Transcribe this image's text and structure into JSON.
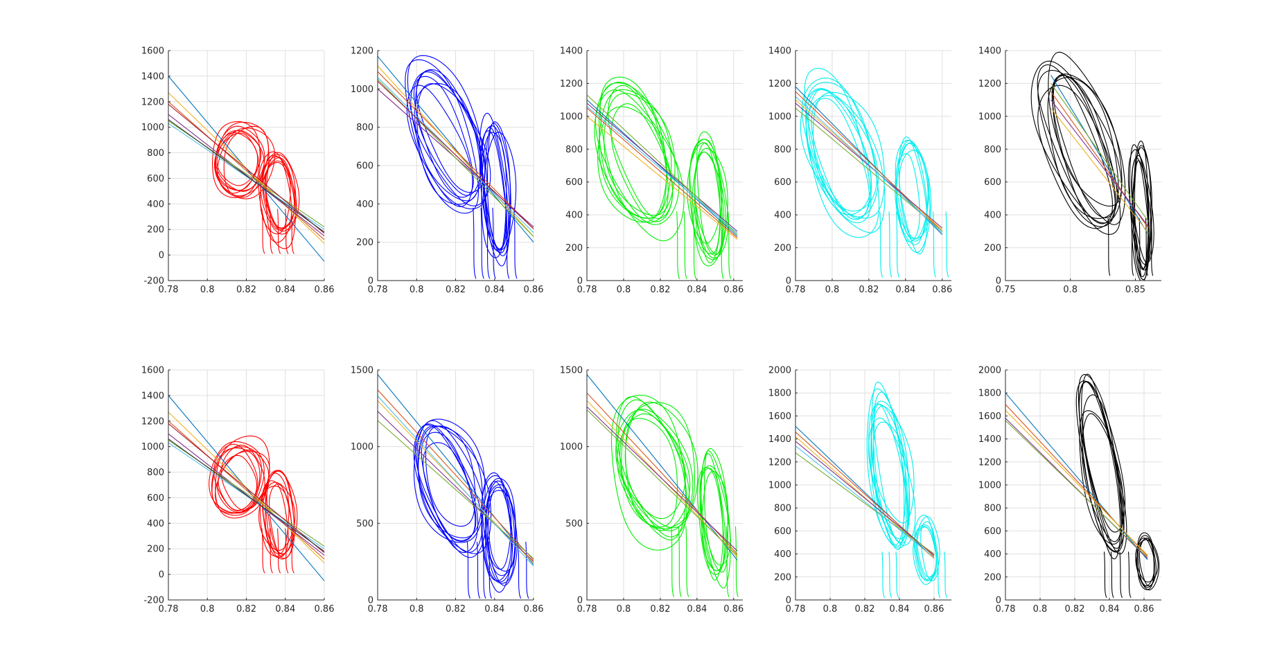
{
  "colors": {
    "background": "#ffffff",
    "grid": "#dfdfdf",
    "axis": "#262626",
    "fit_lines": [
      "#0072BD",
      "#D95319",
      "#EDB120",
      "#7E2F8E",
      "#77AC30",
      "#4DBEEE",
      "#A2142F",
      "#333333"
    ]
  },
  "chart_data": [
    {
      "type": "line",
      "row": 0,
      "col": 0,
      "trace_color": "#ff0000",
      "xlim": [
        0.78,
        0.86
      ],
      "ylim": [
        -200,
        1600
      ],
      "xticks": [
        "0.78",
        "0.8",
        "0.82",
        "0.84",
        "0.86"
      ],
      "xtick_values": [
        0.78,
        0.8,
        0.82,
        0.84,
        0.86
      ],
      "yticks": [
        "-200",
        "0",
        "200",
        "400",
        "600",
        "800",
        "1000",
        "1200",
        "1400",
        "1600"
      ],
      "ytick_values": [
        -200,
        0,
        200,
        400,
        600,
        800,
        1000,
        1200,
        1400,
        1600
      ],
      "grid": true,
      "fit_lines": [
        [
          0.78,
          1400,
          0.86,
          -50
        ],
        [
          0.78,
          1200,
          0.86,
          120
        ],
        [
          0.78,
          1270,
          0.86,
          90
        ],
        [
          0.78,
          1100,
          0.86,
          150
        ],
        [
          0.78,
          1050,
          0.86,
          220
        ],
        [
          0.78,
          1030,
          0.86,
          200
        ],
        [
          0.78,
          1180,
          0.86,
          170
        ],
        [
          0.78,
          1060,
          0.86,
          180
        ]
      ],
      "loops": [
        {
          "cx": 0.817,
          "cy": 740,
          "rx": 0.013,
          "ry": 260,
          "rot": 0.55,
          "n": 9
        },
        {
          "cx": 0.836,
          "cy": 450,
          "rx": 0.0075,
          "ry": 330,
          "rot": 0.15,
          "n": 8
        }
      ],
      "drops": {
        "x": [
          0.828,
          0.832,
          0.836,
          0.84,
          0.843
        ],
        "y0": 360,
        "y1": 10
      }
    },
    {
      "type": "line",
      "row": 0,
      "col": 1,
      "trace_color": "#0000ff",
      "xlim": [
        0.78,
        0.86
      ],
      "ylim": [
        0,
        1200
      ],
      "xticks": [
        "0.78",
        "0.8",
        "0.82",
        "0.84",
        "0.86"
      ],
      "xtick_values": [
        0.78,
        0.8,
        0.82,
        0.84,
        0.86
      ],
      "yticks": [
        "0",
        "200",
        "400",
        "600",
        "800",
        "1000",
        "1200"
      ],
      "ytick_values": [
        0,
        200,
        400,
        600,
        800,
        1000,
        1200
      ],
      "grid": true,
      "fit_lines": [
        [
          0.78,
          1170,
          0.86,
          200
        ],
        [
          0.78,
          1090,
          0.86,
          270
        ],
        [
          0.78,
          1120,
          0.86,
          230
        ],
        [
          0.78,
          1000,
          0.86,
          280
        ],
        [
          0.78,
          1050,
          0.86,
          230
        ],
        [
          0.78,
          1060,
          0.86,
          250
        ],
        [
          0.78,
          1040,
          0.86,
          270
        ]
      ],
      "loops": [
        {
          "cx": 0.815,
          "cy": 730,
          "rx": 0.013,
          "ry": 420,
          "rot": 0.6,
          "n": 9
        },
        {
          "cx": 0.841,
          "cy": 470,
          "rx": 0.0065,
          "ry": 330,
          "rot": 0.1,
          "n": 8
        }
      ],
      "drops": {
        "x": [
          0.829,
          0.833,
          0.836,
          0.839,
          0.846,
          0.85
        ],
        "y0": 380,
        "y1": 10
      }
    },
    {
      "type": "line",
      "row": 0,
      "col": 2,
      "trace_color": "#00ee00",
      "xlim": [
        0.78,
        0.865
      ],
      "ylim": [
        0,
        1400
      ],
      "xticks": [
        "0.78",
        "0.8",
        "0.82",
        "0.84",
        "0.86"
      ],
      "xtick_values": [
        0.78,
        0.8,
        0.82,
        0.84,
        0.86
      ],
      "yticks": [
        "0",
        "200",
        "400",
        "600",
        "800",
        "1000",
        "1200",
        "1400"
      ],
      "ytick_values": [
        0,
        200,
        400,
        600,
        800,
        1000,
        1200,
        1400
      ],
      "grid": true,
      "fit_lines": [
        [
          0.78,
          1100,
          0.862,
          270
        ],
        [
          0.78,
          1050,
          0.862,
          260
        ],
        [
          0.78,
          1000,
          0.862,
          250
        ],
        [
          0.78,
          1080,
          0.862,
          300
        ],
        [
          0.78,
          1130,
          0.862,
          280
        ],
        [
          0.78,
          1060,
          0.862,
          290
        ]
      ],
      "loops": [
        {
          "cx": 0.808,
          "cy": 760,
          "rx": 0.015,
          "ry": 470,
          "rot": 0.55,
          "n": 9
        },
        {
          "cx": 0.846,
          "cy": 500,
          "rx": 0.008,
          "ry": 340,
          "rot": 0.12,
          "n": 8
        }
      ],
      "drops": {
        "x": [
          0.829,
          0.833,
          0.838,
          0.853,
          0.857
        ],
        "y0": 420,
        "y1": 10
      }
    },
    {
      "type": "line",
      "row": 0,
      "col": 3,
      "trace_color": "#00eeee",
      "xlim": [
        0.78,
        0.865
      ],
      "ylim": [
        0,
        1400
      ],
      "xticks": [
        "0.78",
        "0.8",
        "0.82",
        "0.84",
        "0.86"
      ],
      "xtick_values": [
        0.78,
        0.8,
        0.82,
        0.84,
        0.86
      ],
      "yticks": [
        "0",
        "200",
        "400",
        "600",
        "800",
        "1000",
        "1200",
        "1400"
      ],
      "ytick_values": [
        0,
        200,
        400,
        600,
        800,
        1000,
        1200,
        1400
      ],
      "grid": true,
      "fit_lines": [
        [
          0.78,
          1180,
          0.86,
          280
        ],
        [
          0.78,
          1150,
          0.86,
          300
        ],
        [
          0.78,
          1100,
          0.86,
          310
        ],
        [
          0.78,
          1080,
          0.86,
          320
        ],
        [
          0.78,
          1050,
          0.86,
          300
        ],
        [
          0.78,
          1120,
          0.86,
          290
        ]
      ],
      "loops": [
        {
          "cx": 0.806,
          "cy": 780,
          "rx": 0.015,
          "ry": 470,
          "rot": 0.55,
          "n": 9
        },
        {
          "cx": 0.843,
          "cy": 520,
          "rx": 0.008,
          "ry": 330,
          "rot": 0.12,
          "n": 7
        }
      ],
      "drops": {
        "x": [
          0.826,
          0.831,
          0.835,
          0.855,
          0.862
        ],
        "y0": 420,
        "y1": 20
      }
    },
    {
      "type": "line",
      "row": 0,
      "col": 4,
      "trace_color": "#000000",
      "xlim": [
        0.75,
        0.87
      ],
      "ylim": [
        0,
        1400
      ],
      "xticks": [
        "0.75",
        "0.8",
        "0.85"
      ],
      "xtick_values": [
        0.75,
        0.8,
        0.85
      ],
      "yticks": [
        "0",
        "200",
        "400",
        "600",
        "800",
        "1000",
        "1200",
        "1400"
      ],
      "ytick_values": [
        0,
        200,
        400,
        600,
        800,
        1000,
        1200,
        1400
      ],
      "grid": true,
      "fit_lines": [
        [
          0.785,
          1250,
          0.86,
          280
        ],
        [
          0.785,
          1150,
          0.86,
          320
        ],
        [
          0.785,
          1050,
          0.86,
          290
        ],
        [
          0.785,
          1100,
          0.86,
          330
        ],
        [
          0.785,
          1200,
          0.86,
          360
        ]
      ],
      "loops": [
        {
          "cx": 0.808,
          "cy": 820,
          "rx": 0.02,
          "ry": 550,
          "rot": 0.55,
          "n": 9
        },
        {
          "cx": 0.854,
          "cy": 440,
          "rx": 0.0065,
          "ry": 380,
          "rot": 0.08,
          "n": 8
        }
      ],
      "drops": {
        "x": [
          0.829,
          0.847,
          0.853,
          0.858,
          0.862
        ],
        "y0": 380,
        "y1": 30
      }
    },
    {
      "type": "line",
      "row": 1,
      "col": 0,
      "trace_color": "#ff0000",
      "xlim": [
        0.78,
        0.86
      ],
      "ylim": [
        -200,
        1600
      ],
      "xticks": [
        "0.78",
        "0.8",
        "0.82",
        "0.84",
        "0.86"
      ],
      "xtick_values": [
        0.78,
        0.8,
        0.82,
        0.84,
        0.86
      ],
      "yticks": [
        "-200",
        "0",
        "200",
        "400",
        "600",
        "800",
        "1000",
        "1200",
        "1400",
        "1600"
      ],
      "ytick_values": [
        -200,
        0,
        200,
        400,
        600,
        800,
        1000,
        1200,
        1400,
        1600
      ],
      "grid": true,
      "fit_lines": [
        [
          0.78,
          1400,
          0.86,
          -50
        ],
        [
          0.78,
          1200,
          0.86,
          120
        ],
        [
          0.78,
          1270,
          0.86,
          90
        ],
        [
          0.78,
          1100,
          0.86,
          150
        ],
        [
          0.78,
          1050,
          0.86,
          220
        ],
        [
          0.78,
          1030,
          0.86,
          200
        ],
        [
          0.78,
          1180,
          0.86,
          170
        ],
        [
          0.78,
          1060,
          0.86,
          180
        ]
      ],
      "loops": [
        {
          "cx": 0.817,
          "cy": 740,
          "rx": 0.013,
          "ry": 260,
          "rot": 0.55,
          "n": 9
        },
        {
          "cx": 0.836,
          "cy": 450,
          "rx": 0.0075,
          "ry": 330,
          "rot": 0.15,
          "n": 8
        }
      ],
      "drops": {
        "x": [
          0.828,
          0.832,
          0.836,
          0.84,
          0.843
        ],
        "y0": 360,
        "y1": 10
      }
    },
    {
      "type": "line",
      "row": 1,
      "col": 1,
      "trace_color": "#0000ff",
      "xlim": [
        0.78,
        0.86
      ],
      "ylim": [
        0,
        1500
      ],
      "xticks": [
        "0.78",
        "0.8",
        "0.82",
        "0.84",
        "0.86"
      ],
      "xtick_values": [
        0.78,
        0.8,
        0.82,
        0.84,
        0.86
      ],
      "yticks": [
        "0",
        "500",
        "1000",
        "1500"
      ],
      "ytick_values": [
        0,
        500,
        1000,
        1500
      ],
      "grid": true,
      "fit_lines": [
        [
          0.78,
          1470,
          0.86,
          230
        ],
        [
          0.78,
          1370,
          0.86,
          260
        ],
        [
          0.78,
          1300,
          0.86,
          240
        ],
        [
          0.78,
          1230,
          0.86,
          250
        ],
        [
          0.78,
          1170,
          0.86,
          270
        ],
        [
          0.78,
          1330,
          0.86,
          220
        ]
      ],
      "loops": [
        {
          "cx": 0.818,
          "cy": 760,
          "rx": 0.014,
          "ry": 430,
          "rot": 0.55,
          "n": 9
        },
        {
          "cx": 0.842,
          "cy": 450,
          "rx": 0.0075,
          "ry": 330,
          "rot": 0.1,
          "n": 8
        }
      ],
      "drops": {
        "x": [
          0.826,
          0.831,
          0.834,
          0.837,
          0.852,
          0.856
        ],
        "y0": 380,
        "y1": 10
      }
    },
    {
      "type": "line",
      "row": 1,
      "col": 2,
      "trace_color": "#00ee00",
      "xlim": [
        0.78,
        0.865
      ],
      "ylim": [
        0,
        1500
      ],
      "xticks": [
        "0.78",
        "0.8",
        "0.82",
        "0.84",
        "0.86"
      ],
      "xtick_values": [
        0.78,
        0.8,
        0.82,
        0.84,
        0.86
      ],
      "yticks": [
        "0",
        "500",
        "1000",
        "1500"
      ],
      "ytick_values": [
        0,
        500,
        1000,
        1500
      ],
      "grid": true,
      "fit_lines": [
        [
          0.78,
          1470,
          0.862,
          260
        ],
        [
          0.78,
          1350,
          0.862,
          300
        ],
        [
          0.78,
          1300,
          0.862,
          280
        ],
        [
          0.78,
          1260,
          0.862,
          320
        ],
        [
          0.78,
          1240,
          0.862,
          290
        ]
      ],
      "loops": [
        {
          "cx": 0.818,
          "cy": 880,
          "rx": 0.017,
          "ry": 470,
          "rot": 0.5,
          "n": 9
        },
        {
          "cx": 0.849,
          "cy": 540,
          "rx": 0.007,
          "ry": 400,
          "rot": 0.12,
          "n": 7
        }
      ],
      "drops": {
        "x": [
          0.826,
          0.83,
          0.834,
          0.856,
          0.861
        ],
        "y0": 480,
        "y1": 20
      }
    },
    {
      "type": "line",
      "row": 1,
      "col": 3,
      "trace_color": "#00eeee",
      "xlim": [
        0.78,
        0.87
      ],
      "ylim": [
        0,
        2000
      ],
      "xticks": [
        "0.78",
        "0.8",
        "0.82",
        "0.84",
        "0.86"
      ],
      "xtick_values": [
        0.78,
        0.8,
        0.82,
        0.84,
        0.86
      ],
      "yticks": [
        "0",
        "200",
        "400",
        "600",
        "800",
        "1000",
        "1200",
        "1400",
        "1600",
        "1800",
        "2000"
      ],
      "ytick_values": [
        0,
        200,
        400,
        600,
        800,
        1000,
        1200,
        1400,
        1600,
        1800,
        2000
      ],
      "grid": true,
      "fit_lines": [
        [
          0.78,
          1510,
          0.86,
          360
        ],
        [
          0.78,
          1460,
          0.86,
          380
        ],
        [
          0.78,
          1420,
          0.86,
          360
        ],
        [
          0.78,
          1380,
          0.86,
          390
        ],
        [
          0.78,
          1280,
          0.86,
          400
        ],
        [
          0.78,
          1340,
          0.86,
          370
        ]
      ],
      "loops": [
        {
          "cx": 0.834,
          "cy": 1100,
          "rx": 0.009,
          "ry": 650,
          "rot": 0.25,
          "n": 9
        },
        {
          "cx": 0.856,
          "cy": 420,
          "rx": 0.006,
          "ry": 260,
          "rot": 0.1,
          "n": 6
        }
      ],
      "drops": {
        "x": [
          0.83,
          0.834,
          0.838,
          0.862,
          0.866
        ],
        "y0": 420,
        "y1": 20
      }
    },
    {
      "type": "line",
      "row": 1,
      "col": 4,
      "trace_color": "#000000",
      "xlim": [
        0.78,
        0.87
      ],
      "ylim": [
        0,
        2000
      ],
      "xticks": [
        "0.78",
        "0.8",
        "0.82",
        "0.84",
        "0.86"
      ],
      "xtick_values": [
        0.78,
        0.8,
        0.82,
        0.84,
        0.86
      ],
      "yticks": [
        "0",
        "200",
        "400",
        "600",
        "800",
        "1000",
        "1200",
        "1400",
        "1600",
        "1800",
        "2000"
      ],
      "ytick_values": [
        0,
        200,
        400,
        600,
        800,
        1000,
        1200,
        1400,
        1600,
        1800,
        2000
      ],
      "grid": true,
      "fit_lines": [
        [
          0.78,
          1800,
          0.862,
          350
        ],
        [
          0.78,
          1700,
          0.862,
          380
        ],
        [
          0.78,
          1650,
          0.862,
          390
        ],
        [
          0.78,
          1580,
          0.862,
          360
        ],
        [
          0.78,
          1560,
          0.862,
          370
        ]
      ],
      "loops": [
        {
          "cx": 0.835,
          "cy": 1120,
          "rx": 0.009,
          "ry": 720,
          "rot": 0.25,
          "n": 8
        },
        {
          "cx": 0.861,
          "cy": 330,
          "rx": 0.005,
          "ry": 230,
          "rot": 0.15,
          "n": 6
        }
      ],
      "drops": {
        "x": [
          0.837,
          0.841,
          0.846,
          0.851
        ],
        "y0": 420,
        "y1": 20
      }
    }
  ]
}
